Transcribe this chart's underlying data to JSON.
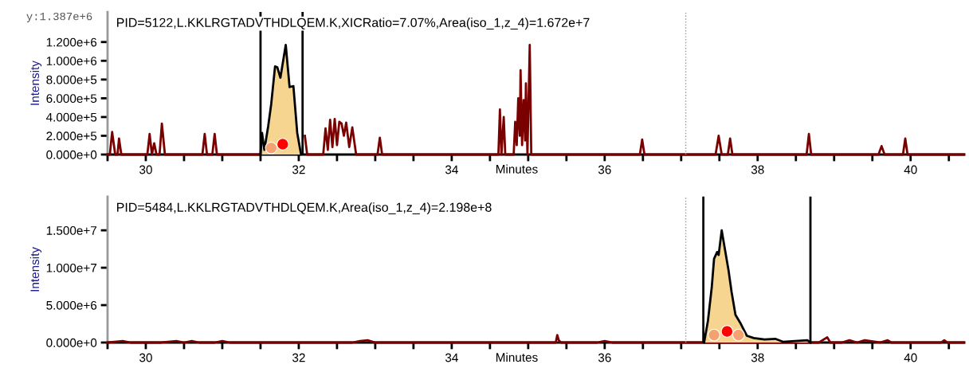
{
  "chart_data": [
    {
      "type": "line",
      "title": "PID=5122,L.KKLRGTADVTHDLQEM.K,XICRatio=7.07%,Area(iso_1,z_4)=1.672e+7",
      "xlabel": "Minutes",
      "ylabel": "Intensity",
      "xlim": [
        29.5,
        40.7
      ],
      "xticks": [
        {
          "value": 29.5,
          "label": null
        },
        {
          "value": 30,
          "label": "30"
        },
        {
          "value": 30.5,
          "label": null
        },
        {
          "value": 31,
          "label": null
        },
        {
          "value": 31.5,
          "label": null
        },
        {
          "value": 32,
          "label": "32"
        },
        {
          "value": 32.5,
          "label": null
        },
        {
          "value": 33,
          "label": null
        },
        {
          "value": 33.5,
          "label": null
        },
        {
          "value": 34,
          "label": "34"
        },
        {
          "value": 34.5,
          "label": null
        },
        {
          "value": 35,
          "label": null
        },
        {
          "value": 35.5,
          "label": null
        },
        {
          "value": 36,
          "label": "36"
        },
        {
          "value": 36.5,
          "label": null
        },
        {
          "value": 37,
          "label": null
        },
        {
          "value": 37.5,
          "label": null
        },
        {
          "value": 38,
          "label": "38"
        },
        {
          "value": 38.5,
          "label": null
        },
        {
          "value": 39,
          "label": null
        },
        {
          "value": 39.5,
          "label": null
        },
        {
          "value": 40,
          "label": "40"
        },
        {
          "value": 40.5,
          "label": null
        }
      ],
      "ylim": [
        0,
        1520000
      ],
      "yticks": [
        {
          "value": 0,
          "label": "0.000e+0"
        },
        {
          "value": 200000,
          "label": "2.000e+5"
        },
        {
          "value": 400000,
          "label": "4.000e+5"
        },
        {
          "value": 600000,
          "label": "6.000e+5"
        },
        {
          "value": 800000,
          "label": "8.000e+5"
        },
        {
          "value": 1000000,
          "label": "1.000e+6"
        },
        {
          "value": 1200000,
          "label": "1.200e+6"
        }
      ],
      "series": [
        {
          "type": "line",
          "color": "#7a0000",
          "x": [
            29.5,
            29.53,
            29.56,
            29.6,
            29.63,
            29.65,
            29.68,
            30.02,
            30.05,
            30.08,
            30.11,
            30.14,
            30.18,
            30.21,
            30.25,
            30.74,
            30.77,
            30.8,
            30.87,
            30.9,
            30.93,
            31.48,
            31.52,
            31.55,
            31.6,
            31.64,
            31.69,
            31.72,
            31.76,
            31.83,
            31.88,
            31.93,
            31.98,
            32.03,
            32.08,
            32.11,
            32.32,
            32.35,
            32.38,
            32.41,
            32.44,
            32.47,
            32.5,
            32.53,
            32.56,
            32.59,
            32.62,
            32.66,
            32.7,
            32.75,
            33.03,
            33.06,
            33.09,
            34.61,
            34.63,
            34.65,
            34.68,
            34.7,
            34.81,
            34.83,
            34.85,
            34.87,
            34.89,
            34.9,
            34.92,
            34.94,
            34.96,
            34.97,
            34.99,
            35.02,
            35.04,
            36.46,
            36.49,
            36.52,
            37.45,
            37.49,
            37.53,
            37.61,
            37.64,
            37.67,
            38.64,
            38.67,
            38.7,
            39.58,
            39.62,
            39.66,
            39.9,
            39.93,
            39.96,
            40.7
          ],
          "values": [
            0,
            0,
            240000,
            0,
            0,
            170000,
            0,
            0,
            220000,
            0,
            120000,
            0,
            0,
            330000,
            0,
            0,
            220000,
            0,
            0,
            220000,
            0,
            0,
            null,
            null,
            null,
            null,
            null,
            null,
            null,
            null,
            null,
            null,
            null,
            null,
            200000,
            0,
            0,
            280000,
            50000,
            370000,
            80000,
            380000,
            100000,
            350000,
            330000,
            200000,
            340000,
            80000,
            290000,
            0,
            0,
            180000,
            0,
            0,
            480000,
            0,
            400000,
            0,
            0,
            350000,
            100000,
            600000,
            200000,
            900000,
            100000,
            580000,
            150000,
            760000,
            0,
            1170000,
            0,
            0,
            160000,
            0,
            0,
            200000,
            0,
            0,
            170000,
            0,
            0,
            220000,
            0,
            0,
            90000,
            0,
            0,
            170000,
            0,
            0
          ]
        },
        {
          "type": "area",
          "color": "#f6d590",
          "x": [
            31.5,
            31.52,
            31.55,
            31.6,
            31.64,
            31.69,
            31.72,
            31.76,
            31.83,
            31.88,
            31.93,
            31.98,
            32.03
          ],
          "values": [
            0,
            230000,
            50000,
            300000,
            540000,
            940000,
            930000,
            820000,
            1170000,
            720000,
            730000,
            230000,
            0
          ]
        },
        {
          "type": "scatter",
          "color": "#f4a272",
          "x": [
            31.64
          ],
          "values": [
            70000
          ]
        },
        {
          "type": "scatter",
          "color": "#ff0000",
          "x": [
            31.79
          ],
          "values": [
            110000
          ]
        }
      ],
      "ref_lines": [
        {
          "axis": "x",
          "value": 31.5,
          "color": "#000000",
          "line_style": "solid"
        },
        {
          "axis": "x",
          "value": 32.05,
          "color": "#000000",
          "line_style": "solid"
        },
        {
          "axis": "x",
          "value": 37.06,
          "color": "#999999",
          "line_style": "dotted"
        }
      ],
      "annotations": [
        "y:1.387e+6"
      ]
    },
    {
      "type": "line",
      "title": "PID=5484,L.KKLRGTADVTHDLQEM.K,Area(iso_1,z_4)=2.198e+8",
      "xlabel": "Minutes",
      "ylabel": "Intensity",
      "xlim": [
        29.5,
        40.7
      ],
      "xticks": [
        {
          "value": 29.5,
          "label": null
        },
        {
          "value": 30,
          "label": "30"
        },
        {
          "value": 30.5,
          "label": null
        },
        {
          "value": 31,
          "label": null
        },
        {
          "value": 31.5,
          "label": null
        },
        {
          "value": 32,
          "label": "32"
        },
        {
          "value": 32.5,
          "label": null
        },
        {
          "value": 33,
          "label": null
        },
        {
          "value": 33.5,
          "label": null
        },
        {
          "value": 34,
          "label": "34"
        },
        {
          "value": 34.5,
          "label": null
        },
        {
          "value": 35,
          "label": null
        },
        {
          "value": 35.5,
          "label": null
        },
        {
          "value": 36,
          "label": "36"
        },
        {
          "value": 36.5,
          "label": null
        },
        {
          "value": 37,
          "label": null
        },
        {
          "value": 37.5,
          "label": null
        },
        {
          "value": 38,
          "label": "38"
        },
        {
          "value": 38.5,
          "label": null
        },
        {
          "value": 39,
          "label": null
        },
        {
          "value": 39.5,
          "label": null
        },
        {
          "value": 40,
          "label": "40"
        },
        {
          "value": 40.5,
          "label": null
        }
      ],
      "ylim": [
        0,
        19500000
      ],
      "yticks": [
        {
          "value": 0,
          "label": "0.000e+0"
        },
        {
          "value": 5000000,
          "label": "5.000e+6"
        },
        {
          "value": 10000000,
          "label": "1.000e+7"
        },
        {
          "value": 15000000,
          "label": "1.500e+7"
        }
      ],
      "series": [
        {
          "type": "line",
          "color": "#7a0000",
          "x": [
            29.5,
            29.7,
            29.8,
            30.2,
            30.4,
            30.5,
            30.6,
            30.7,
            30.9,
            31.0,
            31.1,
            32.7,
            32.8,
            32.9,
            33.0,
            35.36,
            35.38,
            35.4,
            35.43,
            35.9,
            36.0,
            36.1,
            37.2,
            38.8,
            38.91,
            38.95,
            39.1,
            39.2,
            39.3,
            39.4,
            39.6,
            39.7,
            39.75,
            40.4,
            40.44,
            40.48,
            40.7
          ],
          "values": [
            0,
            200000,
            0,
            0,
            200000,
            0,
            200000,
            0,
            0,
            200000,
            0,
            0,
            200000,
            300000,
            0,
            0,
            1000000,
            300000,
            0,
            0,
            200000,
            0,
            0,
            0,
            700000,
            0,
            0,
            300000,
            0,
            300000,
            0,
            300000,
            0,
            0,
            300000,
            0,
            0
          ]
        },
        {
          "type": "area",
          "color": "#f6d590",
          "x": [
            37.3,
            37.35,
            37.4,
            37.43,
            37.47,
            37.49,
            37.53,
            37.57,
            37.62,
            37.66,
            37.71,
            37.78,
            37.86,
            37.95,
            38.09,
            38.23,
            38.33,
            38.65,
            38.69
          ],
          "values": [
            0,
            2900000,
            7400000,
            11200000,
            12100000,
            11700000,
            15000000,
            12600000,
            9600000,
            6700000,
            3700000,
            2500000,
            900000,
            600000,
            400000,
            500000,
            100000,
            300000,
            0
          ]
        },
        {
          "type": "scatter",
          "color": "#f4a272",
          "x": [
            37.43,
            37.75
          ],
          "values": [
            1000000,
            1000000
          ]
        },
        {
          "type": "scatter",
          "color": "#ff0000",
          "x": [
            37.6
          ],
          "values": [
            1500000
          ]
        }
      ],
      "ref_lines": [
        {
          "axis": "x",
          "value": 37.06,
          "color": "#999999",
          "line_style": "dotted"
        },
        {
          "axis": "x",
          "value": 37.29,
          "color": "#000000",
          "line_style": "solid"
        },
        {
          "axis": "x",
          "value": 38.69,
          "color": "#000000",
          "line_style": "solid"
        }
      ]
    }
  ]
}
